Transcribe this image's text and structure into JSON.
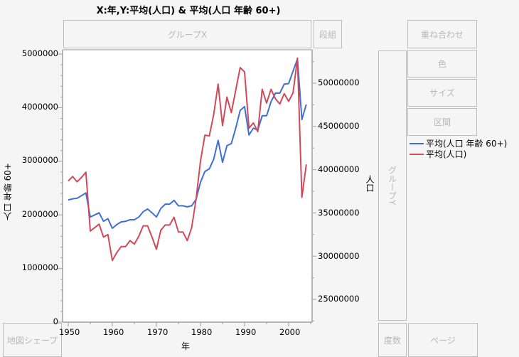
{
  "title": "X:年,Y:平均(人口) & 平均(人口 年齢 60+)",
  "drop_zones": {
    "group_x": "グループX",
    "wrap": "段組",
    "overlay": "重ね合わせ",
    "color": "色",
    "size": "サイズ",
    "interval": "区間",
    "group_y": "グループY",
    "freq": "度数",
    "page": "ページ",
    "map_shape": "地図シェープ"
  },
  "axes": {
    "x_label": "年",
    "y_left_label": "人口 年齢 60+",
    "y_right_label": "人口",
    "x_ticks": [
      "1950",
      "1960",
      "1970",
      "1980",
      "1990",
      "2000"
    ],
    "y_left_ticks": [
      "5000000",
      "4000000",
      "3000000",
      "2000000",
      "1000000",
      "0"
    ],
    "y_right_ticks": [
      "50000000",
      "45000000",
      "40000000",
      "35000000",
      "30000000",
      "25000000"
    ]
  },
  "legend": [
    {
      "label": "平均(人口 年齢 60+)",
      "color": "#3d6fd6"
    },
    {
      "label": "平均(人口)",
      "color": "#d04a5a"
    }
  ],
  "chart_data": {
    "type": "line",
    "title": "X:年,Y:平均(人口) & 平均(人口 年齢 60+)",
    "xlabel": "年",
    "ylabel": "人口 年齢 60+",
    "y2label": "人口",
    "xlim": [
      1948.7,
      2005.3
    ],
    "ylim": [
      0,
      5080000
    ],
    "y2lim": [
      22000000,
      53800000
    ],
    "grid": false,
    "legend_position": "right",
    "x": [
      1950,
      1951,
      1952,
      1953,
      1954,
      1955,
      1956,
      1957,
      1958,
      1959,
      1960,
      1961,
      1962,
      1963,
      1964,
      1965,
      1966,
      1967,
      1968,
      1969,
      1970,
      1971,
      1972,
      1973,
      1974,
      1975,
      1976,
      1977,
      1978,
      1979,
      1980,
      1981,
      1982,
      1983,
      1984,
      1985,
      1986,
      1987,
      1988,
      1989,
      1990,
      1991,
      1992,
      1993,
      1994,
      1995,
      1996,
      1997,
      1998,
      1999,
      2000,
      2001,
      2002,
      2003,
      2004
    ],
    "series": [
      {
        "name": "平均(人口 年齢 60+)",
        "axis": "left",
        "color": "#3d6fd6",
        "values": [
          2280000,
          2300000,
          2310000,
          2360000,
          2410000,
          1960000,
          2000000,
          2040000,
          1880000,
          1930000,
          1750000,
          1820000,
          1870000,
          1880000,
          1910000,
          1910000,
          1960000,
          2060000,
          2110000,
          2040000,
          1960000,
          2120000,
          2200000,
          2200000,
          2270000,
          2170000,
          2170000,
          2150000,
          2170000,
          2290000,
          2610000,
          2810000,
          2860000,
          3040000,
          3390000,
          2980000,
          3290000,
          3330000,
          3620000,
          3950000,
          4020000,
          3490000,
          3620000,
          3580000,
          3850000,
          3850000,
          4110000,
          4270000,
          4270000,
          4440000,
          4450000,
          4680000,
          4910000,
          3780000,
          4060000
        ]
      },
      {
        "name": "平均(人口)",
        "axis": "right",
        "color": "#d04a5a",
        "values": [
          38700000,
          39200000,
          38600000,
          39100000,
          39700000,
          32900000,
          33300000,
          33700000,
          32200000,
          32500000,
          29500000,
          30400000,
          31100000,
          31100000,
          31800000,
          31400000,
          32300000,
          33500000,
          33500000,
          32200000,
          30800000,
          33000000,
          33600000,
          33600000,
          34500000,
          32800000,
          32800000,
          31800000,
          33300000,
          36600000,
          41000000,
          44000000,
          43900000,
          46400000,
          49900000,
          45100000,
          48400000,
          46600000,
          49200000,
          51800000,
          51300000,
          44800000,
          45400000,
          44400000,
          49300000,
          47700000,
          49300000,
          48200000,
          47600000,
          48800000,
          47900000,
          48900000,
          52900000,
          36800000,
          40600000
        ]
      }
    ]
  }
}
